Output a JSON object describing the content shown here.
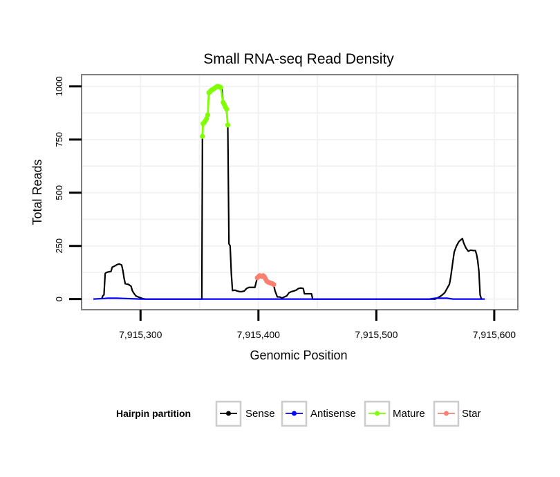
{
  "chart_data": {
    "type": "line",
    "title": "Small RNA-seq Read Density",
    "xlabel": "Genomic Position",
    "ylabel": "Total Reads",
    "xlim": [
      7915250,
      7915620
    ],
    "ylim": [
      -50,
      1055
    ],
    "x_ticks": [
      7915300,
      7915400,
      7915500,
      7915600
    ],
    "x_tick_labels": [
      "7,915,300",
      "7,915,400",
      "7,915,500",
      "7,915,600"
    ],
    "y_ticks": [
      0,
      250,
      500,
      750,
      1000
    ],
    "y_tick_labels": [
      "0",
      "250",
      "500",
      "750",
      "1000"
    ],
    "grid": true,
    "legend": {
      "title": "Hairpin partition",
      "position": "bottom",
      "entries": [
        {
          "label": "Sense",
          "color": "#000000"
        },
        {
          "label": "Antisense",
          "color": "#0000ff"
        },
        {
          "label": "Mature",
          "color": "#7fff00"
        },
        {
          "label": "Star",
          "color": "#fa8072"
        }
      ]
    },
    "series": [
      {
        "name": "Sense",
        "color": "#000000",
        "points": [
          [
            7915267,
            0
          ],
          [
            7915268,
            15
          ],
          [
            7915269,
            20
          ],
          [
            7915270,
            120
          ],
          [
            7915271,
            125
          ],
          [
            7915273,
            128
          ],
          [
            7915275,
            130
          ],
          [
            7915276,
            150
          ],
          [
            7915278,
            155
          ],
          [
            7915280,
            162
          ],
          [
            7915282,
            165
          ],
          [
            7915284,
            160
          ],
          [
            7915285,
            135
          ],
          [
            7915286,
            100
          ],
          [
            7915287,
            72
          ],
          [
            7915289,
            70
          ],
          [
            7915290,
            68
          ],
          [
            7915292,
            60
          ],
          [
            7915293,
            40
          ],
          [
            7915294,
            30
          ],
          [
            7915296,
            15
          ],
          [
            7915298,
            10
          ],
          [
            7915300,
            6
          ],
          [
            7915302,
            2
          ],
          [
            7915304,
            0
          ],
          [
            7915352,
            0
          ],
          [
            7915352.5,
            760
          ],
          [
            7915353,
            830
          ],
          [
            7915355,
            840
          ],
          [
            7915356,
            860
          ],
          [
            7915357,
            870
          ],
          [
            7915358,
            970
          ],
          [
            7915360,
            980
          ],
          [
            7915362,
            990
          ],
          [
            7915364,
            995
          ],
          [
            7915366,
            1000
          ],
          [
            7915368,
            995
          ],
          [
            7915369,
            990
          ],
          [
            7915370,
            930
          ],
          [
            7915372,
            900
          ],
          [
            7915373,
            880
          ],
          [
            7915374,
            820
          ],
          [
            7915375,
            260
          ],
          [
            7915376,
            250
          ],
          [
            7915377,
            120
          ],
          [
            7915378,
            40
          ],
          [
            7915380,
            42
          ],
          [
            7915382,
            38
          ],
          [
            7915384,
            35
          ],
          [
            7915386,
            35
          ],
          [
            7915388,
            38
          ],
          [
            7915390,
            50
          ],
          [
            7915392,
            55
          ],
          [
            7915395,
            55
          ],
          [
            7915397,
            55
          ],
          [
            7915399,
            100
          ],
          [
            7915401,
            110
          ],
          [
            7915403,
            108
          ],
          [
            7915405,
            95
          ],
          [
            7915407,
            80
          ],
          [
            7915409,
            75
          ],
          [
            7915411,
            72
          ],
          [
            7915413,
            65
          ],
          [
            7915414,
            40
          ],
          [
            7915416,
            10
          ],
          [
            7915418,
            10
          ],
          [
            7915420,
            5
          ],
          [
            7915422,
            10
          ],
          [
            7915424,
            15
          ],
          [
            7915426,
            30
          ],
          [
            7915428,
            35
          ],
          [
            7915430,
            38
          ],
          [
            7915432,
            42
          ],
          [
            7915434,
            50
          ],
          [
            7915436,
            52
          ],
          [
            7915438,
            50
          ],
          [
            7915439,
            25
          ],
          [
            7915441,
            25
          ],
          [
            7915443,
            25
          ],
          [
            7915445,
            25
          ],
          [
            7915446,
            0
          ],
          [
            7915550,
            0
          ],
          [
            7915552,
            6
          ],
          [
            7915554,
            12
          ],
          [
            7915556,
            20
          ],
          [
            7915558,
            30
          ],
          [
            7915560,
            50
          ],
          [
            7915562,
            70
          ],
          [
            7915563,
            100
          ],
          [
            7915564,
            140
          ],
          [
            7915566,
            220
          ],
          [
            7915568,
            250
          ],
          [
            7915570,
            270
          ],
          [
            7915572,
            280
          ],
          [
            7915573,
            285
          ],
          [
            7915574,
            265
          ],
          [
            7915576,
            240
          ],
          [
            7915578,
            225
          ],
          [
            7915580,
            230
          ],
          [
            7915582,
            228
          ],
          [
            7915584,
            228
          ],
          [
            7915585,
            210
          ],
          [
            7915586,
            180
          ],
          [
            7915587,
            130
          ],
          [
            7915588,
            20
          ],
          [
            7915589,
            2
          ],
          [
            7915590,
            0
          ]
        ]
      },
      {
        "name": "Antisense",
        "color": "#0000ff",
        "points": [
          [
            7915260,
            0
          ],
          [
            7915270,
            3
          ],
          [
            7915272,
            4
          ],
          [
            7915280,
            4
          ],
          [
            7915285,
            3
          ],
          [
            7915300,
            0
          ],
          [
            7915545,
            0
          ],
          [
            7915550,
            4
          ],
          [
            7915560,
            4
          ],
          [
            7915565,
            0
          ],
          [
            7915592,
            0
          ]
        ]
      },
      {
        "name": "Mature",
        "color": "#7fff00",
        "points": [
          [
            7915352.5,
            765
          ],
          [
            7915353,
            825
          ],
          [
            7915354,
            830
          ],
          [
            7915355,
            838
          ],
          [
            7915356,
            848
          ],
          [
            7915357,
            866
          ],
          [
            7915358,
            970
          ],
          [
            7915359,
            975
          ],
          [
            7915360,
            982
          ],
          [
            7915361,
            985
          ],
          [
            7915362,
            988
          ],
          [
            7915363,
            992
          ],
          [
            7915364,
            996
          ],
          [
            7915365,
            1000
          ],
          [
            7915366,
            1000
          ],
          [
            7915367,
            997
          ],
          [
            7915368,
            995
          ],
          [
            7915370,
            925
          ],
          [
            7915371,
            915
          ],
          [
            7915372,
            902
          ],
          [
            7915373,
            893
          ],
          [
            7915374,
            818
          ]
        ]
      },
      {
        "name": "Star",
        "color": "#fa8072",
        "points": [
          [
            7915399,
            100
          ],
          [
            7915400,
            105
          ],
          [
            7915401,
            110
          ],
          [
            7915402,
            108
          ],
          [
            7915403,
            106
          ],
          [
            7915404,
            110
          ],
          [
            7915405,
            105
          ],
          [
            7915406,
            95
          ],
          [
            7915407,
            85
          ],
          [
            7915408,
            80
          ],
          [
            7915409,
            78
          ],
          [
            7915410,
            76
          ],
          [
            7915411,
            74
          ],
          [
            7915412,
            72
          ],
          [
            7915413,
            68
          ]
        ]
      }
    ]
  }
}
